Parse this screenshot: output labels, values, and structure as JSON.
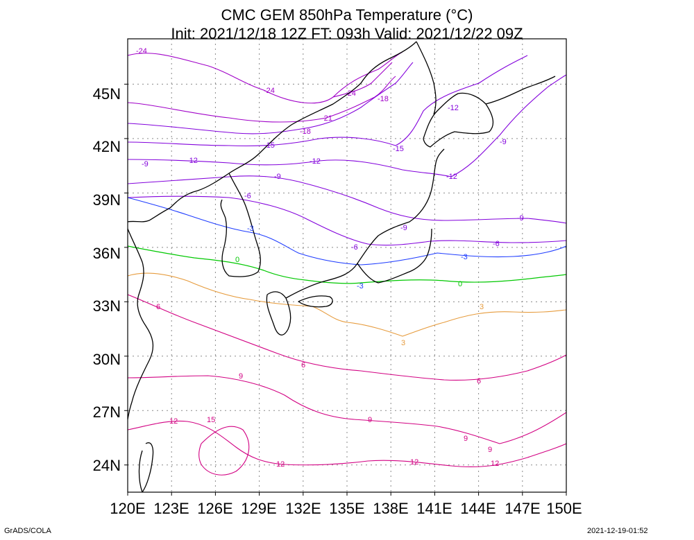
{
  "title": "CMC GEM 850hPa Temperature (°C)",
  "subtitle": "Init: 2021/12/18 12Z  FT: 093h  Valid: 2021/12/22 09Z",
  "footer_left": "GrADS/COLA",
  "footer_right": "2021-12-19-01:52",
  "lat_labels": [
    "45N",
    "42N",
    "39N",
    "36N",
    "33N",
    "30N",
    "27N",
    "24N"
  ],
  "lon_labels": [
    "120E",
    "123E",
    "126E",
    "129E",
    "132E",
    "135E",
    "138E",
    "141E",
    "144E",
    "147E",
    "150E"
  ],
  "contour_labels": {
    "m24": "-24",
    "m21": "-21",
    "m18": "-18",
    "m15": "-15",
    "m12": "-12",
    "m9": "-9",
    "m6": "-6",
    "m3": "-3",
    "z0": "0",
    "p3": "3",
    "p6": "6",
    "p9": "9",
    "p12": "12",
    "p15": "15"
  },
  "colors": {
    "cold_deep": "#a000c8",
    "cold": "#8200dc",
    "minus3": "#1e3cff",
    "zero": "#00c800",
    "plus3": "#e69b3c",
    "warm": "#d20082",
    "coast": "#000000"
  },
  "map": {
    "lon_min": 120,
    "lon_max": 150,
    "lat_min": 22.5,
    "lat_max": 47.5,
    "grid": true
  }
}
